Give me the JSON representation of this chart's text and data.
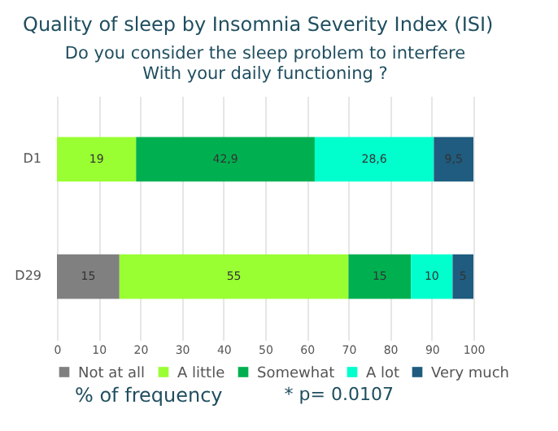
{
  "chart_data": {
    "type": "bar",
    "orientation": "horizontal",
    "stacked": true,
    "title": "Quality of sleep by Insomnia Severity Index (ISI)",
    "subtitle": "Do you consider the sleep problem to interfere\nWith your daily functioning ?",
    "categories": [
      "D1",
      "D29"
    ],
    "series": [
      {
        "name": "Not at all",
        "color": "#808080",
        "values": [
          0,
          15
        ],
        "value_labels": [
          null,
          "15"
        ]
      },
      {
        "name": "A little",
        "color": "#99ff33",
        "values": [
          19,
          55
        ],
        "value_labels": [
          "19",
          "55"
        ]
      },
      {
        "name": "Somewhat",
        "color": "#00b050",
        "values": [
          42.9,
          15
        ],
        "value_labels": [
          "42,9",
          "15"
        ]
      },
      {
        "name": "A lot",
        "color": "#00ffcc",
        "values": [
          28.6,
          10
        ],
        "value_labels": [
          "28,6",
          "10"
        ]
      },
      {
        "name": "Very much",
        "color": "#1f5c7f",
        "values": [
          9.5,
          5
        ],
        "value_labels": [
          "9,5",
          "5"
        ]
      }
    ],
    "xlim": [
      0,
      100
    ],
    "xticks": [
      0,
      10,
      20,
      30,
      40,
      50,
      60,
      70,
      80,
      90,
      100
    ],
    "grid": "x",
    "legend": "bottom",
    "annotations": [
      "% of frequency",
      "* p= 0.0107"
    ]
  }
}
